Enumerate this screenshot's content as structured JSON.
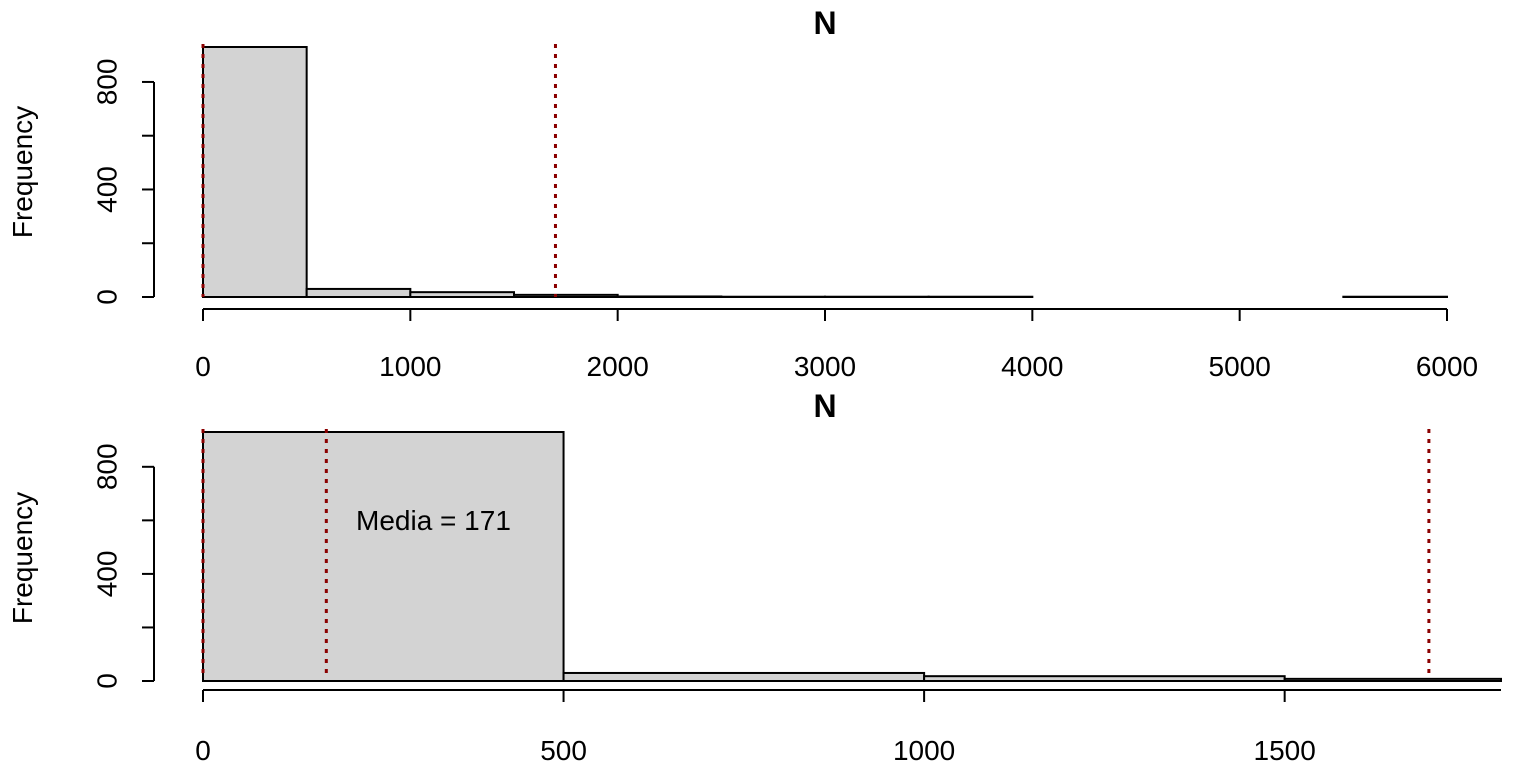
{
  "chart_data": [
    {
      "type": "bar",
      "title": "N",
      "xlabel": "",
      "ylabel": "Frequency",
      "bins": [
        [
          0,
          500
        ],
        [
          500,
          1000
        ],
        [
          1000,
          1500
        ],
        [
          1500,
          2000
        ],
        [
          2000,
          2500
        ],
        [
          2500,
          3000
        ],
        [
          3000,
          3500
        ],
        [
          3500,
          4000
        ],
        [
          4000,
          4500
        ],
        [
          4500,
          5000
        ],
        [
          5000,
          5500
        ],
        [
          5500,
          6000
        ]
      ],
      "values": [
        930,
        30,
        18,
        8,
        2,
        1,
        1,
        1,
        0,
        0,
        0,
        1
      ],
      "xlim": [
        0,
        6000
      ],
      "ylim": [
        0,
        930
      ],
      "xticks": [
        "0",
        "1000",
        "2000",
        "3000",
        "4000",
        "5000",
        "6000"
      ],
      "yticks": [
        "0",
        "400",
        "800"
      ],
      "vlines": [
        0,
        1700
      ],
      "vline_color": "#8b0000",
      "bar_color": "#d3d3d3"
    },
    {
      "type": "bar",
      "title": "N",
      "xlabel": "",
      "ylabel": "Frequency",
      "bins": [
        [
          0,
          500
        ],
        [
          500,
          1000
        ],
        [
          1000,
          1500
        ],
        [
          1500,
          2000
        ]
      ],
      "values": [
        930,
        30,
        18,
        8
      ],
      "xlim": [
        0,
        1800
      ],
      "ylim": [
        0,
        930
      ],
      "xticks": [
        "0",
        "500",
        "1000",
        "1500"
      ],
      "yticks": [
        "0",
        "400",
        "800"
      ],
      "vlines": [
        0,
        171,
        1700
      ],
      "annotation": "Media = 171",
      "vline_color": "#8b0000",
      "bar_color": "#d3d3d3"
    }
  ]
}
